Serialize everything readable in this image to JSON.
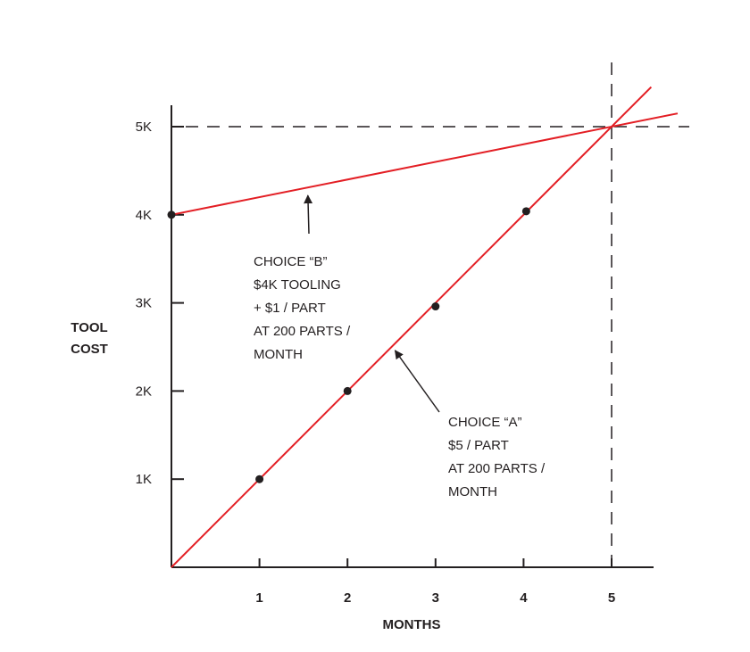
{
  "colors": {
    "line": "#e31e24",
    "ink": "#231f20"
  },
  "chart_data": {
    "type": "line",
    "title": "",
    "xlabel": "MONTHS",
    "ylabel_lines": [
      "TOOL",
      "COST"
    ],
    "xlim": [
      0,
      5.5
    ],
    "ylim": [
      0,
      5500
    ],
    "x_ticks": [
      1,
      2,
      3,
      4,
      5
    ],
    "x_tick_labels": [
      "1",
      "2",
      "3",
      "4",
      "5"
    ],
    "y_ticks": [
      1000,
      2000,
      3000,
      4000,
      5000
    ],
    "y_tick_labels": [
      "1K",
      "2K",
      "3K",
      "4K",
      "5K"
    ],
    "grid": false,
    "reference_lines": {
      "x": 5,
      "y": 5000,
      "style": "dashed"
    },
    "series": [
      {
        "key": "A",
        "line": {
          "x": [
            0,
            5.45
          ],
          "y": [
            0,
            5450
          ]
        },
        "points": {
          "x": [
            1,
            2,
            3,
            4.03
          ],
          "y": [
            1000,
            2000,
            2960,
            4040
          ]
        }
      },
      {
        "key": "B",
        "line": {
          "x": [
            0,
            5.75
          ],
          "y": [
            4000,
            5150
          ]
        },
        "points": {
          "x": [
            0
          ],
          "y": [
            4000
          ]
        }
      }
    ],
    "annotations": [
      {
        "series": "B",
        "lines": [
          "CHOICE “B”",
          "$4K TOOLING",
          "+ $1 / PART",
          "AT 200 PARTS /",
          "MONTH"
        ],
        "points_to": {
          "x": 1.55,
          "y": 4300
        }
      },
      {
        "series": "A",
        "lines": [
          "CHOICE “A”",
          "$5 / PART",
          "AT 200 PARTS /",
          "MONTH"
        ],
        "points_to": {
          "x": 2.5,
          "y": 2500
        }
      }
    ]
  }
}
